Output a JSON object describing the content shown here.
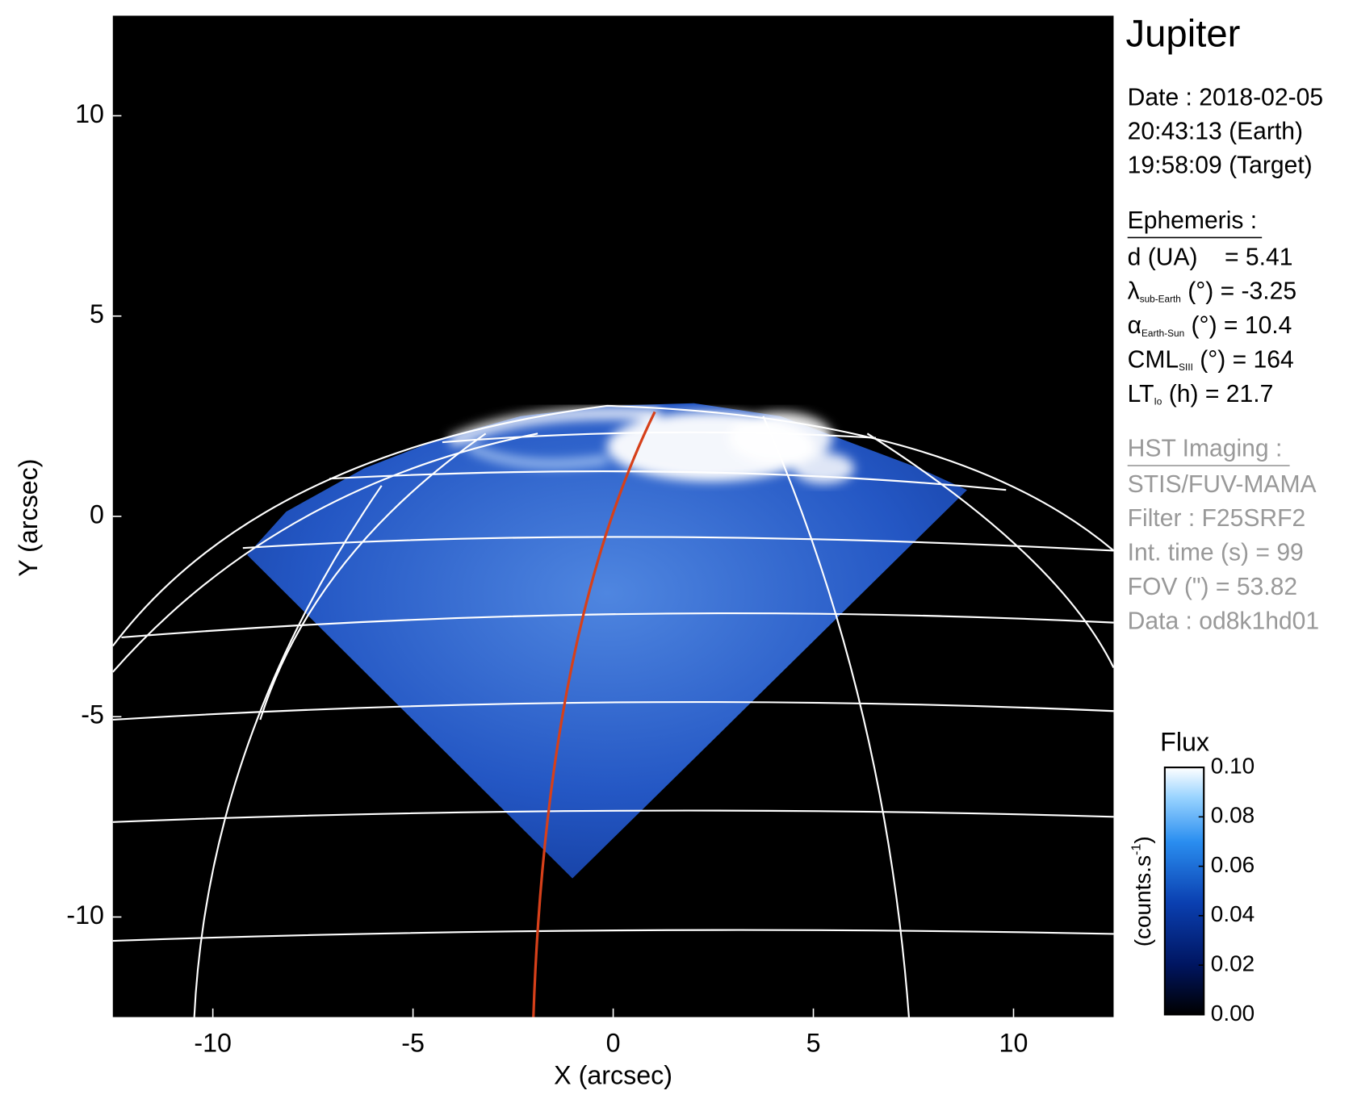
{
  "chart_data": {
    "type": "image",
    "title": "Jupiter",
    "xlabel": "X (arcsec)",
    "ylabel": "Y (arcsec)",
    "xlim": [
      -12.5,
      12.5
    ],
    "ylim": [
      -12.5,
      12.5
    ],
    "xticks": [
      -10,
      -5,
      0,
      5,
      10
    ],
    "yticks": [
      -10,
      -5,
      0,
      5,
      10
    ],
    "colorbar": {
      "title": "Flux",
      "label_parts": [
        "(counts.s",
        "-1",
        ")"
      ],
      "clim": [
        0,
        0.1
      ],
      "ticks": [
        {
          "value": 0,
          "label": "0.00"
        },
        {
          "value": 0.02,
          "label": "0.02"
        },
        {
          "value": 0.04,
          "label": "0.04"
        },
        {
          "value": 0.06,
          "label": "0.06"
        },
        {
          "value": 0.08,
          "label": "0.08"
        },
        {
          "value": 0.1,
          "label": "0.10"
        }
      ]
    },
    "info": {
      "date": [
        "Date : 2018-02-05",
        "20:43:13 (Earth)",
        "19:58:09 (Target)"
      ],
      "ephemeris_title": "Ephemeris :",
      "ephemeris": [
        {
          "main": "d (UA)    = 5.41"
        },
        {
          "main": "λ",
          "sub": "sub-Earth",
          "rest": " (°) = -3.25"
        },
        {
          "main": "α",
          "sub": "Earth-Sun",
          "rest": " (°) = 10.4"
        },
        {
          "main": "CML",
          "sub": "SIII",
          "rest": " (°) = 164"
        },
        {
          "main": "LT",
          "sub": "Io",
          "rest": " (h) = 21.7"
        }
      ],
      "imaging_title": "HST Imaging :",
      "imaging": [
        "STIS/FUV-MAMA",
        "Filter : F25SRF2",
        "Int. time (s) = 99",
        "FOV (\") = 53.82",
        "Data : od8k1hd01"
      ]
    }
  }
}
